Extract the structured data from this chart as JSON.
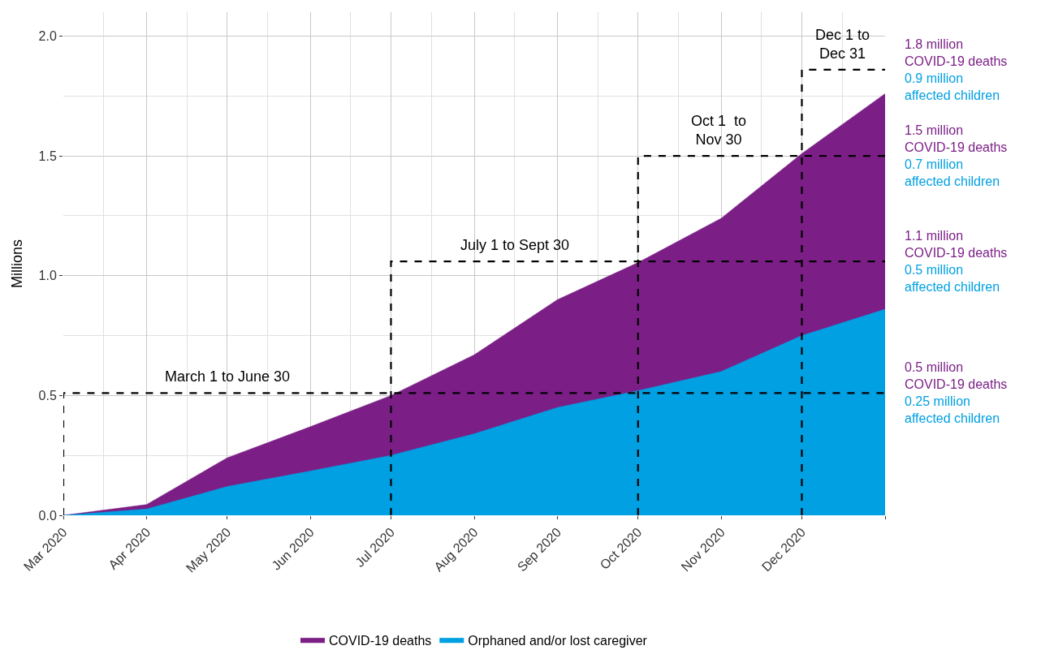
{
  "chart_data": {
    "type": "area",
    "ylabel": "Millions",
    "x": [
      "2020-03-01",
      "2020-04-01",
      "2020-05-01",
      "2020-06-01",
      "2020-07-01",
      "2020-08-01",
      "2020-09-01",
      "2020-10-01",
      "2020-11-01",
      "2020-12-01",
      "2021-01-01"
    ],
    "series": [
      {
        "name": "COVID-19 deaths",
        "color": "#7b1f86",
        "values": [
          0,
          0.045,
          0.24,
          0.37,
          0.5,
          0.67,
          0.9,
          1.055,
          1.24,
          1.51,
          1.76
        ]
      },
      {
        "name": "Orphaned and/or lost caregiver",
        "color": "#00a0e2",
        "values": [
          0,
          0.026,
          0.12,
          0.185,
          0.25,
          0.34,
          0.45,
          0.52,
          0.6,
          0.75,
          0.86
        ]
      },
      {
        "type": "line",
        "color": "#000000",
        "line_style": "dashed",
        "x": [
          "2020-03-01",
          "2020-03-01",
          "2021-01-01",
          null,
          "2020-07-01",
          "2020-07-01",
          "2021-01-01",
          null,
          "2020-10-01",
          "2020-10-01",
          "2021-01-01",
          null,
          "2020-12-01",
          "2020-12-01",
          "2021-01-01"
        ],
        "values": [
          0,
          0.51,
          0.51,
          null,
          0,
          1.06,
          1.06,
          null,
          0,
          1.5,
          1.5,
          null,
          0,
          1.86,
          1.86
        ]
      }
    ],
    "xlim": [
      "2020-03-01",
      "2021-01-01"
    ],
    "xticks": [
      {
        "value": "2020-03-01",
        "label": "Mar 2020"
      },
      {
        "value": "2020-04-01",
        "label": "Apr 2020"
      },
      {
        "value": "2020-05-01",
        "label": "May 2020"
      },
      {
        "value": "2020-06-01",
        "label": "Jun 2020"
      },
      {
        "value": "2020-07-01",
        "label": "Jul 2020"
      },
      {
        "value": "2020-08-01",
        "label": "Aug 2020"
      },
      {
        "value": "2020-09-01",
        "label": "Sep 2020"
      },
      {
        "value": "2020-10-01",
        "label": "Oct 2020"
      },
      {
        "value": "2020-11-01",
        "label": "Nov 2020"
      },
      {
        "value": "2020-12-01",
        "label": "Dec 2020"
      },
      {
        "value": "2021-01-01",
        "label": null
      }
    ],
    "ylim": [
      0,
      2.1
    ],
    "yticks": [
      {
        "value": 0,
        "label": "0.0"
      },
      {
        "value": 0.5,
        "label": "0.5"
      },
      {
        "value": 1,
        "label": "1.0"
      },
      {
        "value": 1.5,
        "label": "1.5"
      },
      {
        "value": 2,
        "label": "2.0"
      }
    ],
    "grid": true,
    "legend": "bottom",
    "annotations": [
      "March 1 to June 30",
      "July 1 to Sept 30",
      "Oct 1  to\nNov 30",
      "Dec 1 to\nDec 31",
      {
        "text": "1.8 million\nCOVID-19 deaths",
        "x": "2021-01-01",
        "y": 1.86
      },
      {
        "text": "0.9 million\naffected children",
        "x": "2021-01-01",
        "y": 1.86
      },
      {
        "text": "1.5 million\nCOVID-19 deaths",
        "x": "2021-01-01",
        "y": 1.5
      },
      {
        "text": "0.7 million\naffected children",
        "x": "2021-01-01",
        "y": 1.5
      },
      {
        "text": "1.1 million\nCOVID-19 deaths",
        "x": "2021-01-01",
        "y": 1.06
      },
      {
        "text": "0.5 million\naffected children",
        "x": "2021-01-01",
        "y": 1.06
      },
      {
        "text": "0.5 million\nCOVID-19 deaths",
        "x": "2021-01-01",
        "y": 0.51
      },
      {
        "text": "0.25 million\naffected children",
        "x": "2021-01-01",
        "y": 0.51
      }
    ]
  }
}
